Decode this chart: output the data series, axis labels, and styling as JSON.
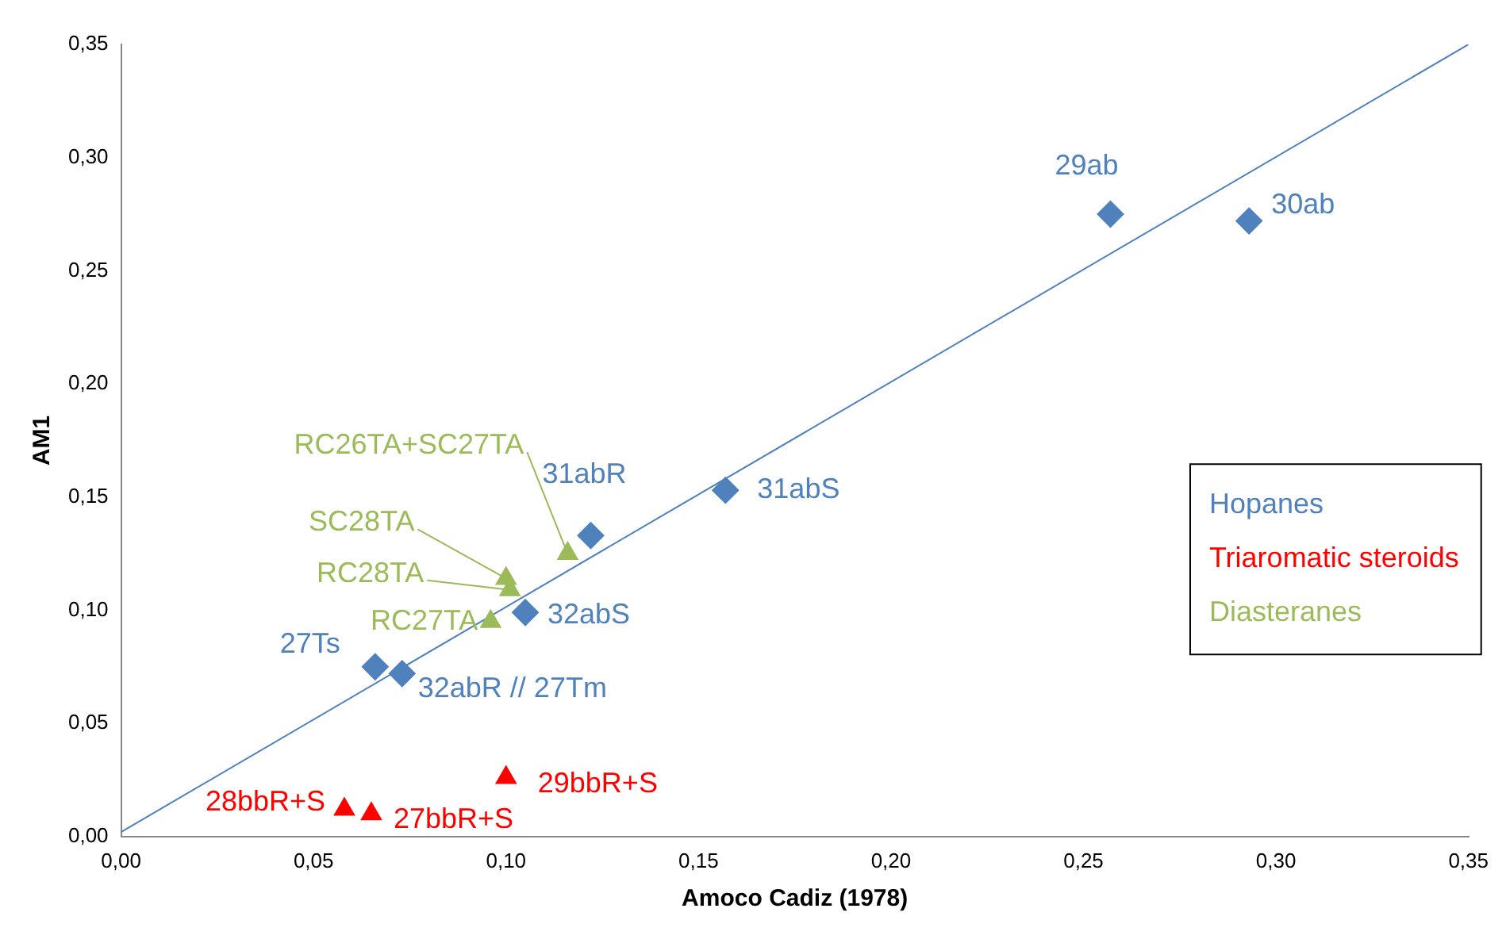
{
  "chart_data": {
    "type": "scatter",
    "xlabel": "Amoco Cadiz (1978)",
    "ylabel": "AM1",
    "xlim": [
      0,
      0.35
    ],
    "ylim": [
      0,
      0.35
    ],
    "xticks": [
      {
        "value": 0,
        "label": "0,00"
      },
      {
        "value": 0.05,
        "label": "0,05"
      },
      {
        "value": 0.1,
        "label": "0,10"
      },
      {
        "value": 0.15,
        "label": "0,15"
      },
      {
        "value": 0.2,
        "label": "0,20"
      },
      {
        "value": 0.25,
        "label": "0,25"
      },
      {
        "value": 0.3,
        "label": "0,30"
      },
      {
        "value": 0.35,
        "label": "0,35"
      }
    ],
    "yticks": [
      {
        "value": 0,
        "label": "0,00"
      },
      {
        "value": 0.05,
        "label": "0,05"
      },
      {
        "value": 0.1,
        "label": "0,10"
      },
      {
        "value": 0.15,
        "label": "0,15"
      },
      {
        "value": 0.2,
        "label": "0,20"
      },
      {
        "value": 0.25,
        "label": "0,25"
      },
      {
        "value": 0.3,
        "label": "0,30"
      },
      {
        "value": 0.35,
        "label": "0,35"
      }
    ],
    "grid": false,
    "legend": "right",
    "series": [
      {
        "name": "Hopanes",
        "color": "#4f81bd",
        "marker": "diamond",
        "x": [
          0.257,
          0.293,
          0.157,
          0.122,
          0.105,
          0.066,
          0.073
        ],
        "values": [
          0.275,
          0.272,
          0.153,
          0.133,
          0.099,
          0.075,
          0.072
        ]
      },
      {
        "name": "Triaromatic steroids",
        "color": "#ff0000",
        "marker": "triangle",
        "x": [
          0.058,
          0.065,
          0.1
        ],
        "values": [
          0.012,
          0.01,
          0.026
        ]
      },
      {
        "name": "Diasteranes",
        "color": "#9bbb59",
        "marker": "triangle",
        "x": [
          0.116,
          0.1,
          0.101,
          0.096
        ],
        "values": [
          0.125,
          0.114,
          0.109,
          0.095
        ]
      },
      {
        "type": "line",
        "color": "#4f81bd",
        "marker": "none",
        "line_style": "solid",
        "x": [
          0,
          0.35
        ],
        "values": [
          0.002,
          0.35
        ]
      }
    ],
    "annotations": [
      {
        "text": "29ab",
        "x": 0.257,
        "y": 0.275
      },
      {
        "text": "30ab",
        "x": 0.293,
        "y": 0.272
      },
      {
        "text": "31abS",
        "x": 0.157,
        "y": 0.153
      },
      {
        "text": "31abR",
        "x": 0.122,
        "y": 0.133
      },
      {
        "text": "32abS",
        "x": 0.105,
        "y": 0.099
      },
      {
        "text": "27Ts",
        "x": 0.066,
        "y": 0.075
      },
      {
        "text": "32abR // 27Tm",
        "x": 0.073,
        "y": 0.072
      },
      {
        "text": "28bbR+S",
        "x": 0.058,
        "y": 0.012
      },
      {
        "text": "27bbR+S",
        "x": 0.065,
        "y": 0.01
      },
      {
        "text": "29bbR+S",
        "x": 0.1,
        "y": 0.026
      },
      {
        "text": "RC26TA+SC27TA",
        "x": 0.116,
        "y": 0.125
      },
      {
        "text": "SC28TA",
        "x": 0.1,
        "y": 0.114
      },
      {
        "text": "RC28TA",
        "x": 0.101,
        "y": 0.109
      },
      {
        "text": "RC27TA",
        "x": 0.096,
        "y": 0.095
      }
    ]
  }
}
